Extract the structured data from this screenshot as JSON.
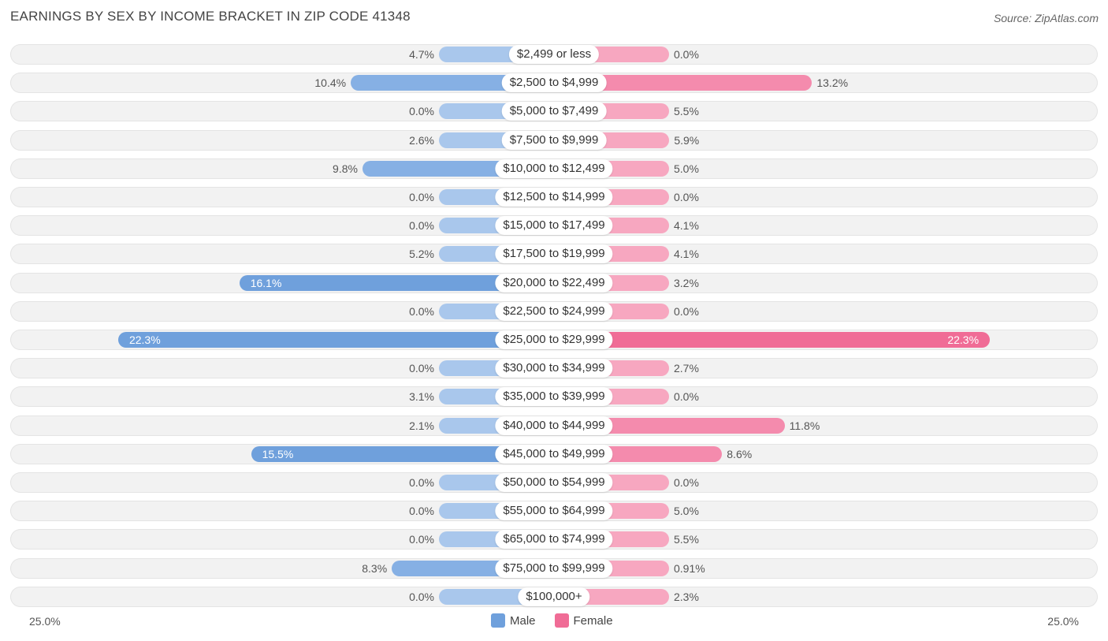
{
  "header": {
    "title": "EARNINGS BY SEX BY INCOME BRACKET IN ZIP CODE 41348",
    "source": "Source: ZipAtlas.com"
  },
  "colors": {
    "male": "#6fa0dc",
    "male_light": "#a9c7ec",
    "female": "#f06c96",
    "female_light": "#f7a7c0"
  },
  "chart_data": {
    "type": "bar",
    "orientation": "horizontal-diverging",
    "title": "EARNINGS BY SEX BY INCOME BRACKET IN ZIP CODE 41348",
    "categories": [
      "$2,499 or less",
      "$2,500 to $4,999",
      "$5,000 to $7,499",
      "$7,500 to $9,999",
      "$10,000 to $12,499",
      "$12,500 to $14,999",
      "$15,000 to $17,499",
      "$17,500 to $19,999",
      "$20,000 to $22,499",
      "$22,500 to $24,999",
      "$25,000 to $29,999",
      "$30,000 to $34,999",
      "$35,000 to $39,999",
      "$40,000 to $44,999",
      "$45,000 to $49,999",
      "$50,000 to $54,999",
      "$55,000 to $64,999",
      "$65,000 to $74,999",
      "$75,000 to $99,999",
      "$100,000+"
    ],
    "series": [
      {
        "name": "Male",
        "values": [
          4.7,
          10.4,
          0.0,
          2.6,
          9.8,
          0.0,
          0.0,
          5.2,
          16.1,
          0.0,
          22.3,
          0.0,
          3.1,
          2.1,
          15.5,
          0.0,
          0.0,
          0.0,
          8.3,
          0.0
        ],
        "labels": [
          "4.7%",
          "10.4%",
          "0.0%",
          "2.6%",
          "9.8%",
          "0.0%",
          "0.0%",
          "5.2%",
          "16.1%",
          "0.0%",
          "22.3%",
          "0.0%",
          "3.1%",
          "2.1%",
          "15.5%",
          "0.0%",
          "0.0%",
          "0.0%",
          "8.3%",
          "0.0%"
        ]
      },
      {
        "name": "Female",
        "values": [
          0.0,
          13.2,
          5.5,
          5.9,
          5.0,
          0.0,
          4.1,
          4.1,
          3.2,
          0.0,
          22.3,
          2.7,
          0.0,
          11.8,
          8.6,
          0.0,
          5.0,
          5.5,
          0.91,
          2.3
        ],
        "labels": [
          "0.0%",
          "13.2%",
          "5.5%",
          "5.9%",
          "5.0%",
          "0.0%",
          "4.1%",
          "4.1%",
          "3.2%",
          "0.0%",
          "22.3%",
          "2.7%",
          "0.0%",
          "11.8%",
          "8.6%",
          "0.0%",
          "5.0%",
          "5.5%",
          "0.91%",
          "2.3%"
        ]
      }
    ],
    "axis_max": 25.0,
    "axis_labels": {
      "left": "25.0%",
      "right": "25.0%"
    },
    "legend": [
      "Male",
      "Female"
    ],
    "legend_position": "bottom-center"
  }
}
